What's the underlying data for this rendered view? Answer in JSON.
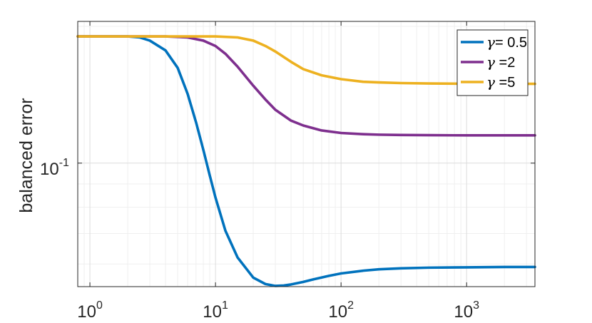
{
  "chart_data": {
    "type": "line",
    "xscale": "log",
    "yscale": "log",
    "xlim": [
      0.8,
      3500
    ],
    "ylim": [
      0.0535,
      0.205
    ],
    "ylabel": "balanced error",
    "xlabel": "",
    "grid": true,
    "minor_grid": true,
    "legend_position": "top-right",
    "xticks": [
      {
        "value": 1,
        "base": "10",
        "exp": "0"
      },
      {
        "value": 10,
        "base": "10",
        "exp": "1"
      },
      {
        "value": 100,
        "base": "10",
        "exp": "2"
      },
      {
        "value": 1000,
        "base": "10",
        "exp": "3"
      }
    ],
    "yticks": [
      {
        "value": 0.1,
        "base": "10",
        "exp": "-1"
      }
    ],
    "series": [
      {
        "name": "γ= 0.5",
        "legend_symbol": "γ",
        "legend_rest": "= 0.5",
        "color": "#0072BD",
        "x": [
          0.8,
          1,
          1.5,
          2,
          2.5,
          3,
          4,
          5,
          6,
          7,
          8,
          9,
          10,
          12,
          15,
          20,
          25,
          30,
          35,
          40,
          50,
          60,
          80,
          100,
          150,
          200,
          300,
          500,
          1000,
          2000,
          3500
        ],
        "y": [
          0.19,
          0.19,
          0.19,
          0.19,
          0.189,
          0.186,
          0.177,
          0.162,
          0.142,
          0.123,
          0.107,
          0.094,
          0.084,
          0.071,
          0.062,
          0.056,
          0.0542,
          0.0537,
          0.0538,
          0.0541,
          0.0548,
          0.0555,
          0.0565,
          0.0572,
          0.058,
          0.0584,
          0.0587,
          0.0589,
          0.059,
          0.0591,
          0.0591
        ]
      },
      {
        "name": "γ =2",
        "legend_symbol": "γ",
        "legend_rest": " =2",
        "color": "#7E2F8E",
        "x": [
          0.8,
          1,
          2,
          4,
          6,
          8,
          10,
          12,
          15,
          20,
          25,
          30,
          40,
          50,
          70,
          100,
          150,
          200,
          300,
          500,
          1000,
          2000,
          3500
        ],
        "y": [
          0.19,
          0.19,
          0.19,
          0.19,
          0.189,
          0.186,
          0.181,
          0.174,
          0.163,
          0.148,
          0.138,
          0.131,
          0.124,
          0.121,
          0.118,
          0.1165,
          0.1158,
          0.1155,
          0.1153,
          0.1152,
          0.1151,
          0.1151,
          0.1151
        ]
      },
      {
        "name": "γ =5",
        "legend_symbol": "γ",
        "legend_rest": " =5",
        "color": "#EDB120",
        "x": [
          0.8,
          1,
          2,
          5,
          10,
          15,
          20,
          25,
          30,
          40,
          50,
          70,
          100,
          150,
          200,
          300,
          500,
          1000,
          2000,
          3500
        ],
        "y": [
          0.19,
          0.19,
          0.19,
          0.19,
          0.19,
          0.189,
          0.186,
          0.181,
          0.176,
          0.167,
          0.161,
          0.156,
          0.153,
          0.151,
          0.1505,
          0.15,
          0.1497,
          0.1495,
          0.1494,
          0.1494
        ]
      }
    ]
  }
}
